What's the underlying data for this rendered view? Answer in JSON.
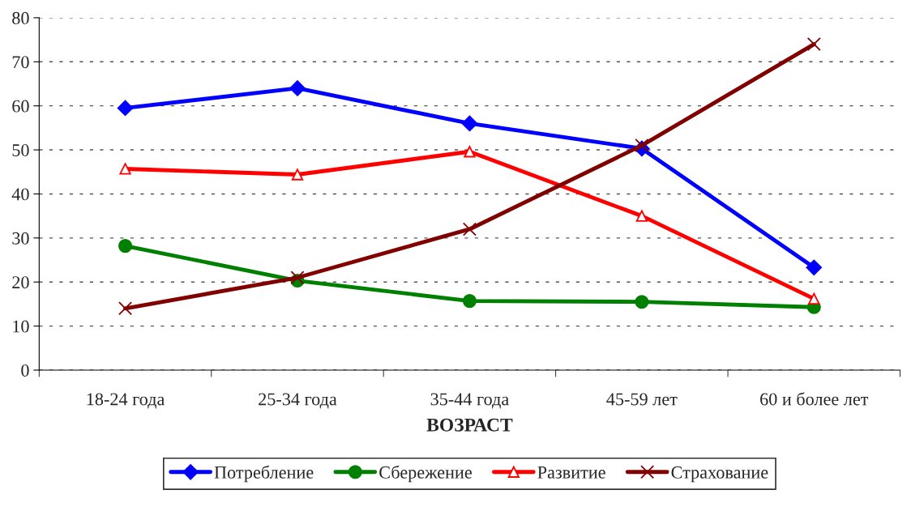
{
  "chart_data": {
    "type": "line",
    "xlabel": "ВОЗРАСТ",
    "categories": [
      "18-24 года",
      "25-34 года",
      "35-44 года",
      "45-59 лет",
      "60 и более лет"
    ],
    "series": [
      {
        "name": "Потребление",
        "color": "#0000ff",
        "marker": "diamond",
        "values": [
          59.5,
          64,
          56,
          50.3,
          23.3
        ]
      },
      {
        "name": "Сбережение",
        "color": "#008000",
        "marker": "circle",
        "values": [
          28.2,
          20.3,
          15.7,
          15.5,
          14.3
        ]
      },
      {
        "name": "Развитие",
        "color": "#ff0000",
        "marker": "triangle",
        "values": [
          45.7,
          44.4,
          49.6,
          35,
          16.2
        ]
      },
      {
        "name": "Страхование",
        "color": "#800000",
        "marker": "cross",
        "values": [
          14,
          21,
          32,
          51,
          74
        ]
      }
    ],
    "ylim": [
      0,
      80
    ],
    "yticks": [
      0,
      10,
      20,
      30,
      40,
      50,
      60,
      70,
      80
    ],
    "grid": "y",
    "legend": "bottom"
  }
}
